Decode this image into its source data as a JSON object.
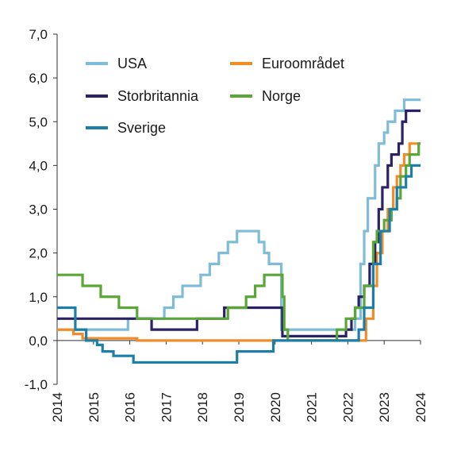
{
  "chart_data": {
    "type": "line",
    "title": "",
    "xlabel": "",
    "ylabel": "",
    "xlim": [
      2014,
      2024
    ],
    "ylim": [
      -1,
      7
    ],
    "x_ticks": [
      2014,
      2015,
      2016,
      2017,
      2018,
      2019,
      2020,
      2021,
      2022,
      2023,
      2024
    ],
    "x_tick_labels": [
      "2014",
      "2015",
      "2016",
      "2017",
      "2018",
      "2019",
      "2020",
      "2021",
      "2022",
      "2023",
      "2024"
    ],
    "y_ticks": [
      -1,
      0,
      1,
      2,
      3,
      4,
      5,
      6,
      7
    ],
    "y_tick_labels": [
      "-1,0",
      "0,0",
      "1,0",
      "2,0",
      "3,0",
      "4,0",
      "5,0",
      "6,0",
      "7,0"
    ],
    "grid": false,
    "legend_position": "top-left",
    "series": [
      {
        "name": "USA",
        "color": "#7fbcd9",
        "points": [
          [
            2014,
            0.25
          ],
          [
            2015.95,
            0.25
          ],
          [
            2015.95,
            0.5
          ],
          [
            2016.95,
            0.5
          ],
          [
            2016.95,
            0.75
          ],
          [
            2017.2,
            0.75
          ],
          [
            2017.2,
            1.0
          ],
          [
            2017.45,
            1.0
          ],
          [
            2017.45,
            1.25
          ],
          [
            2017.95,
            1.25
          ],
          [
            2017.95,
            1.5
          ],
          [
            2018.2,
            1.5
          ],
          [
            2018.2,
            1.75
          ],
          [
            2018.45,
            1.75
          ],
          [
            2018.45,
            2.0
          ],
          [
            2018.7,
            2.0
          ],
          [
            2018.7,
            2.25
          ],
          [
            2018.95,
            2.25
          ],
          [
            2018.95,
            2.5
          ],
          [
            2019.55,
            2.5
          ],
          [
            2019.55,
            2.25
          ],
          [
            2019.7,
            2.25
          ],
          [
            2019.7,
            2.0
          ],
          [
            2019.83,
            2.0
          ],
          [
            2019.83,
            1.75
          ],
          [
            2020.17,
            1.75
          ],
          [
            2020.17,
            0.25
          ],
          [
            2022.2,
            0.25
          ],
          [
            2022.2,
            0.5
          ],
          [
            2022.35,
            0.5
          ],
          [
            2022.35,
            1.75
          ],
          [
            2022.45,
            1.75
          ],
          [
            2022.45,
            2.5
          ],
          [
            2022.55,
            2.5
          ],
          [
            2022.55,
            3.25
          ],
          [
            2022.75,
            3.25
          ],
          [
            2022.75,
            4.0
          ],
          [
            2022.85,
            4.0
          ],
          [
            2022.85,
            4.5
          ],
          [
            2023.0,
            4.5
          ],
          [
            2023.0,
            4.75
          ],
          [
            2023.1,
            4.75
          ],
          [
            2023.1,
            5.0
          ],
          [
            2023.3,
            5.0
          ],
          [
            2023.3,
            5.25
          ],
          [
            2023.55,
            5.25
          ],
          [
            2023.55,
            5.5
          ],
          [
            2024,
            5.5
          ]
        ]
      },
      {
        "name": "Euroområdet",
        "color": "#f28c28",
        "points": [
          [
            2014,
            0.25
          ],
          [
            2014.45,
            0.25
          ],
          [
            2014.45,
            0.15
          ],
          [
            2014.7,
            0.15
          ],
          [
            2014.7,
            0.05
          ],
          [
            2016.2,
            0.05
          ],
          [
            2016.2,
            0.0
          ],
          [
            2022.5,
            0.0
          ],
          [
            2022.5,
            0.5
          ],
          [
            2022.7,
            0.5
          ],
          [
            2022.7,
            1.25
          ],
          [
            2022.8,
            1.25
          ],
          [
            2022.8,
            2.0
          ],
          [
            2022.95,
            2.0
          ],
          [
            2022.95,
            2.5
          ],
          [
            2023.1,
            2.5
          ],
          [
            2023.1,
            3.0
          ],
          [
            2023.25,
            3.0
          ],
          [
            2023.25,
            3.5
          ],
          [
            2023.35,
            3.5
          ],
          [
            2023.35,
            3.75
          ],
          [
            2023.45,
            3.75
          ],
          [
            2023.45,
            4.0
          ],
          [
            2023.55,
            4.0
          ],
          [
            2023.55,
            4.25
          ],
          [
            2023.7,
            4.25
          ],
          [
            2023.7,
            4.5
          ],
          [
            2024,
            4.5
          ]
        ]
      },
      {
        "name": "Storbritannia",
        "color": "#2a2166",
        "points": [
          [
            2014,
            0.5
          ],
          [
            2016.6,
            0.5
          ],
          [
            2016.6,
            0.25
          ],
          [
            2017.85,
            0.25
          ],
          [
            2017.85,
            0.5
          ],
          [
            2018.6,
            0.5
          ],
          [
            2018.6,
            0.75
          ],
          [
            2020.2,
            0.75
          ],
          [
            2020.2,
            0.1
          ],
          [
            2021.95,
            0.1
          ],
          [
            2021.95,
            0.25
          ],
          [
            2022.1,
            0.25
          ],
          [
            2022.1,
            0.5
          ],
          [
            2022.2,
            0.5
          ],
          [
            2022.2,
            0.75
          ],
          [
            2022.3,
            0.75
          ],
          [
            2022.3,
            1.0
          ],
          [
            2022.45,
            1.0
          ],
          [
            2022.45,
            1.25
          ],
          [
            2022.6,
            1.25
          ],
          [
            2022.6,
            1.75
          ],
          [
            2022.75,
            1.75
          ],
          [
            2022.75,
            2.25
          ],
          [
            2022.85,
            2.25
          ],
          [
            2022.85,
            3.0
          ],
          [
            2022.95,
            3.0
          ],
          [
            2022.95,
            3.5
          ],
          [
            2023.1,
            3.5
          ],
          [
            2023.1,
            4.0
          ],
          [
            2023.2,
            4.0
          ],
          [
            2023.2,
            4.25
          ],
          [
            2023.4,
            4.25
          ],
          [
            2023.4,
            4.5
          ],
          [
            2023.5,
            4.5
          ],
          [
            2023.5,
            5.0
          ],
          [
            2023.6,
            5.0
          ],
          [
            2023.6,
            5.25
          ],
          [
            2024,
            5.25
          ]
        ]
      },
      {
        "name": "Norge",
        "color": "#5aa637",
        "points": [
          [
            2014,
            1.5
          ],
          [
            2014.7,
            1.5
          ],
          [
            2014.7,
            1.25
          ],
          [
            2015.2,
            1.25
          ],
          [
            2015.2,
            1.0
          ],
          [
            2015.7,
            1.0
          ],
          [
            2015.7,
            0.75
          ],
          [
            2016.2,
            0.75
          ],
          [
            2016.2,
            0.5
          ],
          [
            2018.7,
            0.5
          ],
          [
            2018.7,
            0.75
          ],
          [
            2019.2,
            0.75
          ],
          [
            2019.2,
            1.0
          ],
          [
            2019.45,
            1.0
          ],
          [
            2019.45,
            1.25
          ],
          [
            2019.7,
            1.25
          ],
          [
            2019.7,
            1.5
          ],
          [
            2020.2,
            1.5
          ],
          [
            2020.2,
            1.0
          ],
          [
            2020.25,
            1.0
          ],
          [
            2020.25,
            0.25
          ],
          [
            2020.35,
            0.25
          ],
          [
            2020.35,
            0.0
          ],
          [
            2021.7,
            0.0
          ],
          [
            2021.7,
            0.25
          ],
          [
            2021.95,
            0.25
          ],
          [
            2021.95,
            0.5
          ],
          [
            2022.2,
            0.5
          ],
          [
            2022.2,
            0.75
          ],
          [
            2022.45,
            0.75
          ],
          [
            2022.45,
            1.25
          ],
          [
            2022.7,
            1.25
          ],
          [
            2022.7,
            2.25
          ],
          [
            2022.8,
            2.25
          ],
          [
            2022.8,
            2.5
          ],
          [
            2023.0,
            2.5
          ],
          [
            2023.0,
            2.75
          ],
          [
            2023.2,
            2.75
          ],
          [
            2023.2,
            3.0
          ],
          [
            2023.35,
            3.0
          ],
          [
            2023.35,
            3.25
          ],
          [
            2023.45,
            3.25
          ],
          [
            2023.45,
            3.75
          ],
          [
            2023.6,
            3.75
          ],
          [
            2023.6,
            4.0
          ],
          [
            2023.7,
            4.0
          ],
          [
            2023.7,
            4.25
          ],
          [
            2023.95,
            4.25
          ],
          [
            2023.95,
            4.5
          ],
          [
            2024,
            4.5
          ]
        ]
      },
      {
        "name": "Sverige",
        "color": "#1b7fa8",
        "points": [
          [
            2014,
            0.75
          ],
          [
            2014.5,
            0.75
          ],
          [
            2014.5,
            0.25
          ],
          [
            2014.8,
            0.25
          ],
          [
            2014.8,
            0.0
          ],
          [
            2015.1,
            0.0
          ],
          [
            2015.1,
            -0.1
          ],
          [
            2015.25,
            -0.1
          ],
          [
            2015.25,
            -0.25
          ],
          [
            2015.55,
            -0.25
          ],
          [
            2015.55,
            -0.35
          ],
          [
            2016.1,
            -0.35
          ],
          [
            2016.1,
            -0.5
          ],
          [
            2018.95,
            -0.5
          ],
          [
            2018.95,
            -0.25
          ],
          [
            2019.95,
            -0.25
          ],
          [
            2019.95,
            0.0
          ],
          [
            2022.3,
            0.0
          ],
          [
            2022.3,
            0.25
          ],
          [
            2022.45,
            0.25
          ],
          [
            2022.45,
            0.75
          ],
          [
            2022.7,
            0.75
          ],
          [
            2022.7,
            1.75
          ],
          [
            2022.9,
            1.75
          ],
          [
            2022.9,
            2.5
          ],
          [
            2023.15,
            2.5
          ],
          [
            2023.15,
            3.0
          ],
          [
            2023.35,
            3.0
          ],
          [
            2023.35,
            3.5
          ],
          [
            2023.6,
            3.5
          ],
          [
            2023.6,
            3.75
          ],
          [
            2023.75,
            3.75
          ],
          [
            2023.75,
            4.0
          ],
          [
            2024,
            4.0
          ]
        ]
      }
    ],
    "legend": [
      {
        "name": "USA",
        "color": "#7fbcd9"
      },
      {
        "name": "Euroområdet",
        "color": "#f28c28"
      },
      {
        "name": "Storbritannia",
        "color": "#2a2166"
      },
      {
        "name": "Norge",
        "color": "#5aa637"
      },
      {
        "name": "Sverige",
        "color": "#1b7fa8"
      }
    ]
  }
}
